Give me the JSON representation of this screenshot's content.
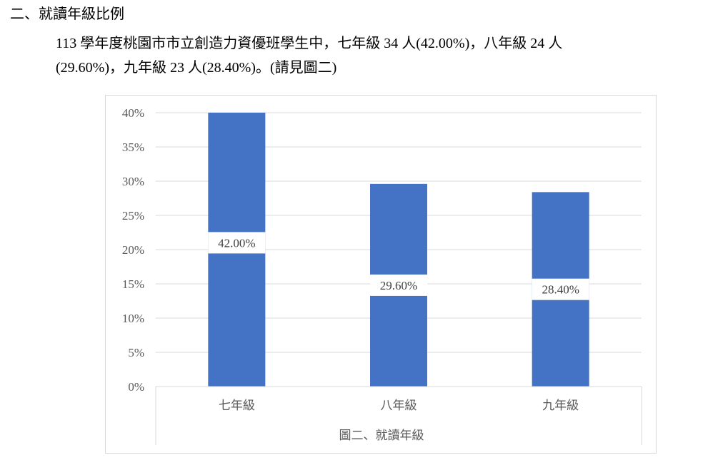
{
  "section_heading": "二、就讀年級比例",
  "paragraph": {
    "line1": "113 學年度桃園市市立創造力資優班學生中，七年級 34 人(42.00%)，八年級 24 人",
    "line2": "(29.60%)，九年級 23 人(28.40%)。(請見圖二)"
  },
  "chart_data": {
    "type": "bar",
    "categories": [
      "七年級",
      "八年級",
      "九年級"
    ],
    "values": [
      42.0,
      29.6,
      28.4
    ],
    "data_labels": [
      "42.00%",
      "29.60%",
      "28.40%"
    ],
    "y_ticks": [
      "0%",
      "5%",
      "10%",
      "15%",
      "20%",
      "25%",
      "30%",
      "35%",
      "40%"
    ],
    "ylim": [
      0,
      40
    ],
    "xlabel": "圖二、就讀年級",
    "grid": true,
    "bar_color": "#4472c4"
  }
}
